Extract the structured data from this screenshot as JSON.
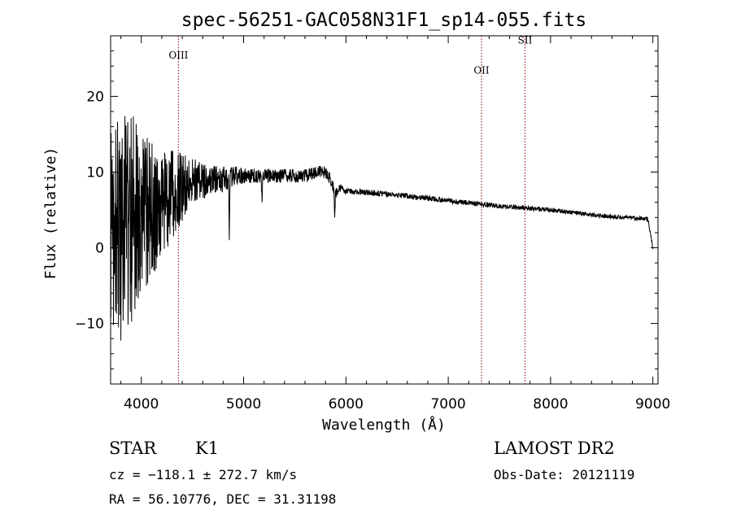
{
  "chart_data": {
    "type": "line",
    "title": "spec-56251-GAC058N31F1_sp14-055.fits",
    "xlabel": "Wavelength (Å)",
    "ylabel": "Flux (relative)",
    "xlim": [
      3700,
      9050
    ],
    "ylim": [
      -18,
      28
    ],
    "xticks": [
      4000,
      5000,
      6000,
      7000,
      8000,
      9000
    ],
    "xtick_labels": [
      "4000",
      "5000",
      "6000",
      "7000",
      "8000",
      "9000"
    ],
    "yticks": [
      -10,
      0,
      10,
      20
    ],
    "ytick_labels": [
      "−10",
      "0",
      "10",
      "20"
    ],
    "grid": false,
    "lines": [
      {
        "label": "OIII",
        "x": 4363,
        "label_y": 25
      },
      {
        "label": "OII",
        "x": 7325,
        "label_y": 23
      },
      {
        "label": "SII",
        "x": 7750,
        "label_y": 27
      }
    ],
    "spectrum_anchors": {
      "x": [
        3700,
        3800,
        3900,
        4000,
        4100,
        4200,
        4300,
        4400,
        4500,
        4600,
        4700,
        4800,
        4900,
        5000,
        5200,
        5400,
        5600,
        5700,
        5800,
        5850,
        5900,
        5950,
        6000,
        6500,
        7000,
        7500,
        8000,
        8500,
        8950,
        9000
      ],
      "y": [
        0,
        2,
        4,
        4,
        5,
        6,
        7,
        8,
        9,
        9,
        9,
        9,
        9.5,
        9.5,
        9.5,
        9.5,
        9.5,
        10,
        10,
        9,
        7,
        8,
        7.5,
        7,
        6.2,
        5.5,
        5.0,
        4.2,
        3.8,
        0
      ]
    },
    "noise_amplitude_by_x": {
      "x": [
        3700,
        3900,
        4100,
        4300,
        4500,
        4700,
        5000,
        5900,
        6000,
        9000
      ],
      "amp": [
        16,
        14,
        9,
        6,
        3,
        2,
        1,
        0.8,
        0.4,
        0.25
      ]
    },
    "notable_features": [
      {
        "x": 4860,
        "y": 1,
        "desc": "H-beta dip"
      },
      {
        "x": 5180,
        "y": 6,
        "desc": "Mg dip"
      },
      {
        "x": 5890,
        "y": 4,
        "desc": "Na D dip"
      }
    ]
  },
  "annotations": {
    "class": "STAR",
    "subclass": "K1",
    "survey": "LAMOST DR2",
    "cz": "cz = −118.1 ± 272.7 km/s",
    "obs_date": "Obs-Date: 20121119",
    "coords": "RA =  56.10776, DEC =  31.31198"
  }
}
